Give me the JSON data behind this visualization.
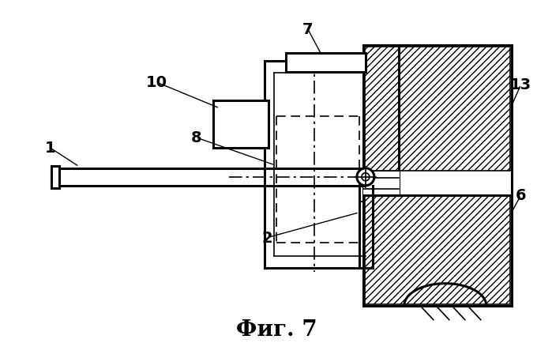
{
  "title": "Фиг. 7",
  "title_fontsize": 20,
  "background_color": "#ffffff",
  "line_color": "#000000",
  "label_fontsize": 14
}
